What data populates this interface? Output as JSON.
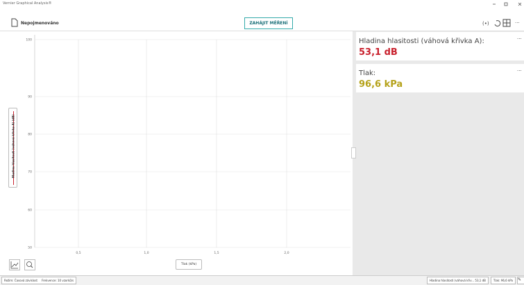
{
  "window": {
    "title": "Vernier Graphical Analysis®"
  },
  "toolbar": {
    "file_name": "Nepojmenováno",
    "start_button": "ZAHÁJIT MĚŘENÍ"
  },
  "graph": {
    "y_axis_label": "Hladina hlasitosti (váhová křivka A) (dB)",
    "y_ticks": [
      "100",
      "90",
      "80",
      "70",
      "60",
      "50"
    ],
    "x_ticks": [
      "0,5",
      "1,0",
      "1,5",
      "2,0"
    ],
    "x_axis_button": "Tlak (kPa)"
  },
  "meters": [
    {
      "label": "Hladina hlasitosti (váhová křivka A):",
      "value": "53,1 dB",
      "menu": "···"
    },
    {
      "label": "Tlak:",
      "value": "96,6 kPa",
      "menu": "···"
    }
  ],
  "status": {
    "mode": "Režim: Časová závislost",
    "rate": "Frekvence: 10 vzorků/s",
    "chips": [
      "Hladina hlasitosti (váhová křiv... 53,1 dB",
      "Tlak: 96,6 kPa"
    ]
  }
}
